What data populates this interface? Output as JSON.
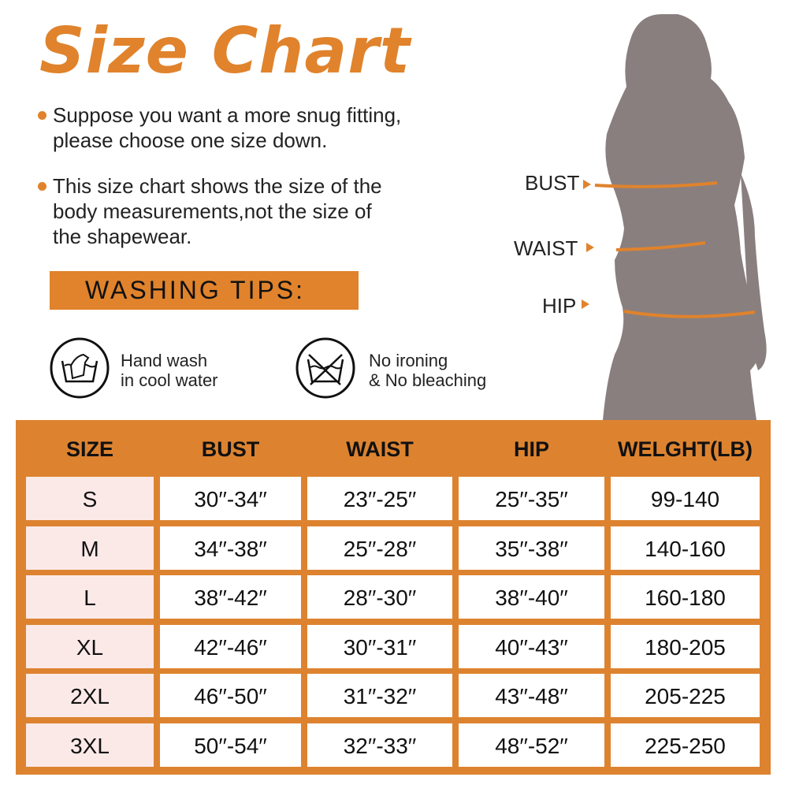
{
  "title": "Size Chart",
  "notes": [
    {
      "lines": [
        "Suppose you want a more snug fitting,",
        "please choose one size down."
      ]
    },
    {
      "lines": [
        "This size chart shows the size of the",
        "body measurements,not the size of",
        "the shapewear."
      ]
    }
  ],
  "washing": {
    "heading": "WASHING TIPS:",
    "tips": [
      {
        "icon": "hand-wash-icon",
        "lines": [
          "Hand wash",
          "in cool water"
        ]
      },
      {
        "icon": "no-bleach-no-iron-icon",
        "lines": [
          "No ironing",
          "& No bleaching"
        ]
      }
    ]
  },
  "measurements": {
    "bust": "BUST",
    "waist": "WAIST",
    "hip": "HIP"
  },
  "colors": {
    "accent": "#e0832c",
    "table": "#dd8330",
    "size_cell": "#fbe9e8",
    "silhouette": "#8a7f7f"
  },
  "table": {
    "headers": [
      "SIZE",
      "BUST",
      "WAIST",
      "HIP",
      "WELGHT(LB)"
    ],
    "rows": [
      [
        "S",
        "30′′-34′′",
        "23′′-25′′",
        "25′′-35′′",
        "99-140"
      ],
      [
        "M",
        "34′′-38′′",
        "25′′-28′′",
        "35′′-38′′",
        "140-160"
      ],
      [
        "L",
        "38′′-42′′",
        "28′′-30′′",
        "38′′-40′′",
        "160-180"
      ],
      [
        "XL",
        "42′′-46′′",
        "30′′-31′′",
        "40′′-43′′",
        "180-205"
      ],
      [
        "2XL",
        "46′′-50′′",
        "31′′-32′′",
        "43′′-48′′",
        "205-225"
      ],
      [
        "3XL",
        "50′′-54′′",
        "32′′-33′′",
        "48′′-52′′",
        "225-250"
      ]
    ]
  }
}
